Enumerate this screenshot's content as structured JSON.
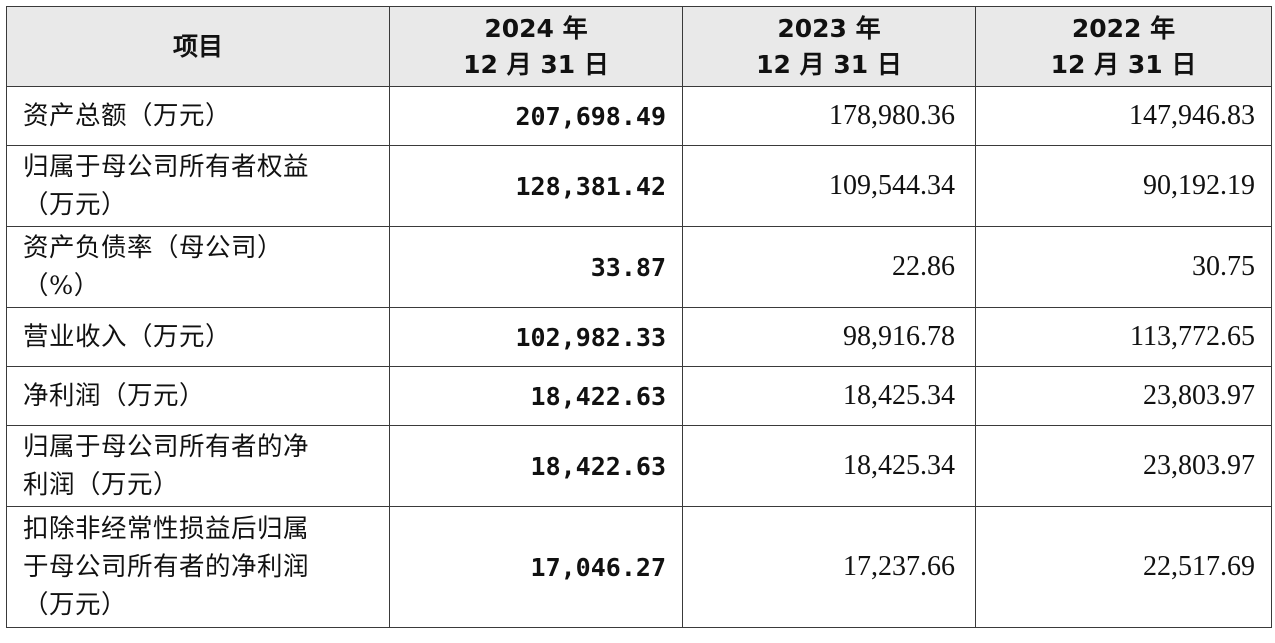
{
  "table": {
    "header": {
      "item": "项目",
      "col_2024": [
        "2024 年",
        "12 月 31 日"
      ],
      "col_2023": [
        "2023 年",
        "12 月 31 日"
      ],
      "col_2022": [
        "2022 年",
        "12 月 31 日"
      ]
    },
    "rows": [
      {
        "label": [
          "资产总额（万元）"
        ],
        "v2024": "207,698.49",
        "v2023": "178,980.36",
        "v2022": "147,946.83"
      },
      {
        "label": [
          "归属于母公司所有者权益",
          "（万元）"
        ],
        "v2024": "128,381.42",
        "v2023": "109,544.34",
        "v2022": "90,192.19"
      },
      {
        "label": [
          "资产负债率（母公司）",
          "（%）"
        ],
        "v2024": "33.87",
        "v2023": "22.86",
        "v2022": "30.75"
      },
      {
        "label": [
          "营业收入（万元）"
        ],
        "v2024": "102,982.33",
        "v2023": "98,916.78",
        "v2022": "113,772.65"
      },
      {
        "label": [
          "净利润（万元）"
        ],
        "v2024": "18,422.63",
        "v2023": "18,425.34",
        "v2022": "23,803.97"
      },
      {
        "label": [
          "归属于母公司所有者的净",
          "利润（万元）"
        ],
        "v2024": "18,422.63",
        "v2023": "18,425.34",
        "v2022": "23,803.97"
      },
      {
        "label": [
          "扣除非经常性损益后归属",
          "于母公司所有者的净利润",
          "（万元）"
        ],
        "v2024": "17,046.27",
        "v2023": "17,237.66",
        "v2022": "22,517.69"
      }
    ]
  },
  "colors": {
    "header_bg": "#e9e9e9",
    "border": "#3a3a3a",
    "text": "#111111"
  }
}
